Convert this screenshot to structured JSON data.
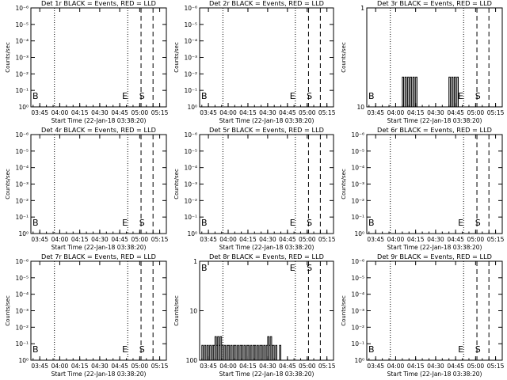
{
  "colors": {
    "background": "#ffffff",
    "ink": "#000000",
    "events": "#000000",
    "lld": "#ff0000"
  },
  "chart_data": [
    {
      "type": "line",
      "detector": "1r",
      "title": "Det 1r BLACK = Events, RED = LLD",
      "xlabel": "Start Time (22-Jan-18 03:38:20)",
      "ylabel": "Counts/sec",
      "xticks": [
        "03:45",
        "04:00",
        "04:15",
        "04:30",
        "04:45",
        "05:00",
        "05:15"
      ],
      "yscale": "log",
      "yticks": [
        "10⁰",
        "10⁻¹",
        "10⁻²",
        "10⁻³",
        "10⁻⁴",
        "10⁻⁵",
        "10⁻⁶"
      ],
      "ylim": [
        1,
        1000000
      ],
      "event_markers": [
        {
          "time": "03:39",
          "label": "B"
        },
        {
          "time": "05:00",
          "label": "E"
        },
        {
          "time": "05:04",
          "label": "S"
        }
      ],
      "legend_labels": [
        "BLACK = Events",
        "RED = LLD"
      ],
      "series": [
        {
          "name": "Events",
          "x": [],
          "y": []
        }
      ]
    },
    {
      "type": "line",
      "detector": "2r",
      "title": "Det 2r BLACK = Events, RED = LLD",
      "xlabel": "Start Time (22-Jan-18 03:38:20)",
      "ylabel": "Counts/sec",
      "xticks": [
        "03:45",
        "04:00",
        "04:15",
        "04:30",
        "04:45",
        "05:00",
        "05:15"
      ],
      "yscale": "log",
      "yticks": [
        "10⁰",
        "10⁻¹",
        "10⁻²",
        "10⁻³",
        "10⁻⁴",
        "10⁻⁵",
        "10⁻⁶"
      ],
      "ylim": [
        1,
        1000000
      ],
      "event_markers": [
        {
          "time": "03:39",
          "label": "B"
        },
        {
          "time": "05:00",
          "label": "E"
        },
        {
          "time": "05:04",
          "label": "S"
        }
      ],
      "legend_labels": [
        "BLACK = Events",
        "RED = LLD"
      ],
      "series": [
        {
          "name": "Events",
          "x": [],
          "y": []
        }
      ]
    },
    {
      "type": "line",
      "detector": "3r",
      "title": "Det 3r BLACK = Events, RED = LLD",
      "xlabel": "Start Time (22-Jan-18 03:38:20)",
      "ylabel": "Counts/sec",
      "xticks": [
        "03:45",
        "04:00",
        "04:15",
        "04:30",
        "04:45",
        "05:00",
        "05:15"
      ],
      "yscale": "log",
      "yticks": [
        "10",
        "1"
      ],
      "ylim": [
        1,
        10
      ],
      "event_markers": [
        {
          "time": "03:39",
          "label": "B"
        },
        {
          "time": "05:00",
          "label": "E"
        },
        {
          "time": "05:04",
          "label": "S"
        }
      ],
      "legend_labels": [
        "BLACK = Events",
        "RED = LLD"
      ],
      "series": [
        {
          "name": "Events",
          "x": [
            "04:05",
            "04:06",
            "04:07",
            "04:08",
            "04:09",
            "04:10",
            "04:11",
            "04:12",
            "04:13",
            "04:14",
            "04:15",
            "04:16",
            "04:40",
            "04:41",
            "04:42",
            "04:43",
            "04:44",
            "04:45",
            "04:46",
            "04:47"
          ],
          "y": [
            2,
            1,
            2,
            1,
            2,
            1,
            2,
            1,
            2,
            1,
            2,
            1,
            2,
            1,
            2,
            1,
            2,
            1,
            2,
            1
          ]
        }
      ]
    },
    {
      "type": "line",
      "detector": "4r",
      "title": "Det 4r BLACK = Events, RED = LLD",
      "xlabel": "Start Time (22-Jan-18 03:38:20)",
      "ylabel": "Counts/sec",
      "xticks": [
        "03:45",
        "04:00",
        "04:15",
        "04:30",
        "04:45",
        "05:00",
        "05:15"
      ],
      "yscale": "log",
      "yticks": [
        "10⁰",
        "10⁻¹",
        "10⁻²",
        "10⁻³",
        "10⁻⁴",
        "10⁻⁵",
        "10⁻⁶"
      ],
      "ylim": [
        1,
        1000000
      ],
      "event_markers": [
        {
          "time": "03:39",
          "label": "B"
        },
        {
          "time": "05:00",
          "label": "E"
        },
        {
          "time": "05:04",
          "label": "S"
        }
      ],
      "legend_labels": [
        "BLACK = Events",
        "RED = LLD"
      ],
      "series": [
        {
          "name": "Events",
          "x": [],
          "y": []
        }
      ]
    },
    {
      "type": "line",
      "detector": "5r",
      "title": "Det 5r BLACK = Events, RED = LLD",
      "xlabel": "Start Time (22-Jan-18 03:38:20)",
      "ylabel": "Counts/sec",
      "xticks": [
        "03:45",
        "04:00",
        "04:15",
        "04:30",
        "04:45",
        "05:00",
        "05:15"
      ],
      "yscale": "log",
      "yticks": [
        "10⁰",
        "10⁻¹",
        "10⁻²",
        "10⁻³",
        "10⁻⁴",
        "10⁻⁵",
        "10⁻⁶"
      ],
      "ylim": [
        1,
        1000000
      ],
      "event_markers": [
        {
          "time": "03:39",
          "label": "B"
        },
        {
          "time": "05:00",
          "label": "E"
        },
        {
          "time": "05:04",
          "label": "S"
        }
      ],
      "legend_labels": [
        "BLACK = Events",
        "RED = LLD"
      ],
      "series": [
        {
          "name": "Events",
          "x": [],
          "y": []
        }
      ]
    },
    {
      "type": "line",
      "detector": "6r",
      "title": "Det 6r BLACK = Events, RED = LLD",
      "xlabel": "Start Time (22-Jan-18 03:38:20)",
      "ylabel": "Counts/sec",
      "xticks": [
        "03:45",
        "04:00",
        "04:15",
        "04:30",
        "04:45",
        "05:00",
        "05:15"
      ],
      "yscale": "log",
      "yticks": [
        "10⁰",
        "10⁻¹",
        "10⁻²",
        "10⁻³",
        "10⁻⁴",
        "10⁻⁵",
        "10⁻⁶"
      ],
      "ylim": [
        1,
        1000000
      ],
      "event_markers": [
        {
          "time": "03:39",
          "label": "B"
        },
        {
          "time": "05:00",
          "label": "E"
        },
        {
          "time": "05:04",
          "label": "S"
        }
      ],
      "legend_labels": [
        "BLACK = Events",
        "RED = LLD"
      ],
      "series": [
        {
          "name": "Events",
          "x": [],
          "y": []
        }
      ]
    },
    {
      "type": "line",
      "detector": "7r",
      "title": "Det 7r BLACK = Events, RED = LLD",
      "xlabel": "Start Time (22-Jan-18 03:38:20)",
      "ylabel": "Counts/sec",
      "xticks": [
        "03:45",
        "04:00",
        "04:15",
        "04:30",
        "04:45",
        "05:00",
        "05:15"
      ],
      "yscale": "log",
      "yticks": [
        "10⁰",
        "10⁻¹",
        "10⁻²",
        "10⁻³",
        "10⁻⁴",
        "10⁻⁵",
        "10⁻⁶"
      ],
      "ylim": [
        1,
        1000000
      ],
      "event_markers": [
        {
          "time": "03:39",
          "label": "B"
        },
        {
          "time": "05:00",
          "label": "E"
        },
        {
          "time": "05:04",
          "label": "S"
        }
      ],
      "legend_labels": [
        "BLACK = Events",
        "RED = LLD"
      ],
      "series": [
        {
          "name": "Events",
          "x": [],
          "y": []
        }
      ]
    },
    {
      "type": "line",
      "detector": "8r",
      "title": "Det 8r BLACK = Events, RED = LLD",
      "xlabel": "Start Time (22-Jan-18 03:38:20)",
      "ylabel": "Counts/sec",
      "xticks": [
        "03:45",
        "04:00",
        "04:15",
        "04:30",
        "04:45",
        "05:00",
        "05:15"
      ],
      "yscale": "log",
      "yticks": [
        "100",
        "10",
        "1"
      ],
      "ylim": [
        1,
        100
      ],
      "event_markers": [
        {
          "time": "03:39",
          "label": "B"
        },
        {
          "time": "05:00",
          "label": "E"
        },
        {
          "time": "05:04",
          "label": "S"
        }
      ],
      "legend_labels": [
        "BLACK = Events",
        "RED = LLD"
      ],
      "series": [
        {
          "name": "Events",
          "x": [
            "03:38",
            "03:40",
            "03:41",
            "03:42",
            "03:43",
            "03:44",
            "03:45",
            "03:46",
            "03:47",
            "03:48",
            "03:49",
            "03:50",
            "03:51",
            "03:52",
            "03:53",
            "03:54",
            "03:55",
            "03:56",
            "03:57",
            "03:58",
            "03:59",
            "04:00",
            "04:01",
            "04:02",
            "04:03",
            "04:04",
            "04:05",
            "04:06",
            "04:07",
            "04:08",
            "04:09",
            "04:10",
            "04:11",
            "04:12",
            "04:13",
            "04:14",
            "04:15",
            "04:16",
            "04:17",
            "04:18",
            "04:19",
            "04:20",
            "04:21",
            "04:22",
            "04:23",
            "04:24",
            "04:25",
            "04:26",
            "04:27",
            "04:28",
            "04:29",
            "04:30",
            "04:31",
            "04:32",
            "04:33",
            "04:34",
            "04:35",
            "04:36",
            "04:37",
            "04:38",
            "04:39",
            "04:40"
          ],
          "y": [
            1,
            2,
            1,
            2,
            1,
            2,
            1,
            2,
            1,
            2,
            2,
            3,
            2,
            3,
            2,
            3,
            2,
            1,
            2,
            1,
            2,
            2,
            1,
            2,
            1,
            2,
            2,
            1,
            2,
            1,
            2,
            2,
            1,
            2,
            1,
            2,
            2,
            1,
            2,
            1,
            2,
            2,
            1,
            2,
            1,
            2,
            2,
            1,
            2,
            1,
            2,
            3,
            2,
            3,
            2,
            2,
            1,
            2,
            1,
            1,
            2,
            1
          ]
        }
      ]
    },
    {
      "type": "line",
      "detector": "9r",
      "title": "Det 9r BLACK = Events, RED = LLD",
      "xlabel": "Start Time (22-Jan-18 03:38:20)",
      "ylabel": "Counts/sec",
      "xticks": [
        "03:45",
        "04:00",
        "04:15",
        "04:30",
        "04:45",
        "05:00",
        "05:15"
      ],
      "yscale": "log",
      "yticks": [
        "10⁰",
        "10⁻¹",
        "10⁻²",
        "10⁻³",
        "10⁻⁴",
        "10⁻⁵",
        "10⁻⁶"
      ],
      "ylim": [
        1,
        1000000
      ],
      "event_markers": [
        {
          "time": "03:39",
          "label": "B"
        },
        {
          "time": "05:00",
          "label": "E"
        },
        {
          "time": "05:04",
          "label": "S"
        }
      ],
      "legend_labels": [
        "BLACK = Events",
        "RED = LLD"
      ],
      "series": [
        {
          "name": "Events",
          "x": [],
          "y": []
        }
      ]
    }
  ]
}
